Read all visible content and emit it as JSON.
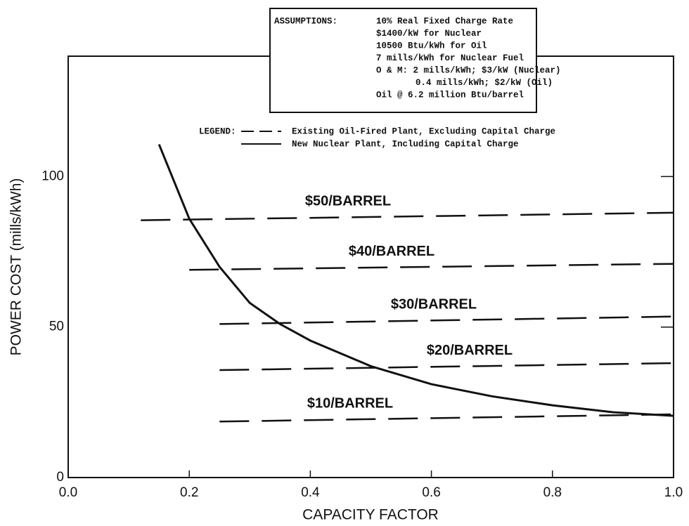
{
  "chart_data": {
    "type": "line",
    "x_label": "CAPACITY FACTOR",
    "y_label": "POWER COST (mills/kWh)",
    "xlim": [
      0,
      1
    ],
    "ylim": [
      0,
      140
    ],
    "xticks": [
      {
        "value": 0,
        "label": "0.0"
      },
      0.2,
      0.4,
      0.6,
      0.8,
      {
        "value": 1,
        "label": "1.0"
      }
    ],
    "yticks": [
      0,
      50,
      100
    ],
    "color": "#111111",
    "assumptions": {
      "title": "ASSUMPTIONS:",
      "items": [
        "10% Real Fixed Charge Rate",
        "$1400/kW for Nuclear",
        "10500 Btu/kWh for Oil",
        "7 mills/kWh for Nuclear Fuel",
        "O & M:  2 mills/kWh; $3/kW (Nuclear)",
        "0.4 mills/kWh; $2/kW (Oil)",
        "Oil @ 6.2 million Btu/barrel"
      ]
    },
    "legend": {
      "title": "LEGEND:",
      "entries": [
        {
          "label": "Existing Oil-Fired Plant, Excluding Capital Charge",
          "dashed": true
        },
        {
          "label": "New Nuclear Plant, Including Capital Charge",
          "dashed": false
        }
      ]
    },
    "series": [
      {
        "name": "New Nuclear Plant",
        "dashed": false,
        "x": [
          0.15,
          0.2,
          0.25,
          0.3,
          0.35,
          0.4,
          0.5,
          0.6,
          0.7,
          0.8,
          0.9,
          1.0
        ],
        "values": [
          110.7,
          86,
          70,
          58,
          51,
          45.5,
          37,
          31,
          27,
          24,
          21.7,
          20.5
        ]
      },
      {
        "name": "$50/BARREL",
        "dashed": true,
        "x": [
          0.12,
          1.0
        ],
        "values": [
          85.5,
          88
        ]
      },
      {
        "name": "$40/BARREL",
        "dashed": true,
        "x": [
          0.2,
          1.0
        ],
        "values": [
          69,
          71
        ]
      },
      {
        "name": "$30/BARREL",
        "dashed": true,
        "x": [
          0.25,
          1.0
        ],
        "values": [
          51,
          53.5
        ]
      },
      {
        "name": "$20/BARREL",
        "dashed": true,
        "x": [
          0.25,
          1.0
        ],
        "values": [
          35.7,
          38
        ]
      },
      {
        "name": "$10/BARREL",
        "dashed": true,
        "x": [
          0.25,
          1.0
        ],
        "values": [
          18.6,
          21
        ]
      }
    ]
  }
}
